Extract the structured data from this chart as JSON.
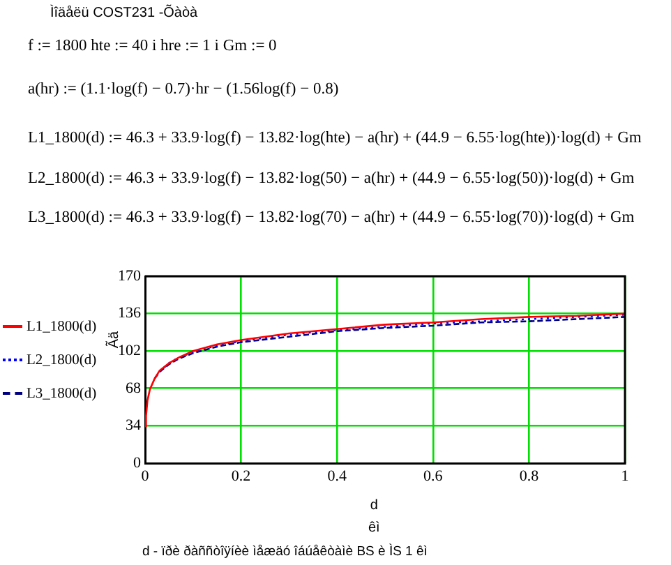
{
  "chart_data": {
    "type": "line",
    "title": "Ìîäåëü COST231 -Õàòà",
    "annotations": [
      "f := 1800    hte := 40   i        hre := 1   i    Gm := 0",
      "a(hr) := (1.1·log(f) − 0.7)·hr − (1.56log(f) − 0.8)",
      "L1_1800(d) := 46.3 + 33.9·log(f) − 13.82·log(hte) − a(hr) + (44.9 − 6.55·log(hte))·log(d) + Gm",
      "L2_1800(d) := 46.3 + 33.9·log(f) − 13.82·log(50) − a(hr) + (44.9 − 6.55·log(50))·log(d) + Gm",
      "L3_1800(d) := 46.3 + 33.9·log(f) − 13.82·log(70) − a(hr) + (44.9 − 6.55·log(70))·log(d) + Gm",
      "d - ïðè ðàññòîÿíèè ìåæäó îáúåêòàìè BS è ÌS 1 êì"
    ],
    "xlabel": "d\nêì",
    "ylabel": "Ãä",
    "x": [
      0.001,
      0.002,
      0.005,
      0.01,
      0.02,
      0.03,
      0.05,
      0.07,
      0.1,
      0.15,
      0.2,
      0.3,
      0.4,
      0.5,
      0.6,
      0.7,
      0.8,
      0.9,
      1
    ],
    "series": [
      {
        "name": "L1_1800(d)",
        "color": "#ff0000",
        "line_style": "solid",
        "values": [
          33,
          43,
          57,
          67,
          77,
          84,
          91,
          96,
          102,
          108,
          112,
          118,
          122,
          126,
          128,
          131,
          133,
          134,
          136
        ]
      },
      {
        "name": "L2_1800(d)",
        "color": "#0000ff",
        "line_style": "dotted",
        "values": [
          null,
          null,
          null,
          null,
          null,
          83,
          91,
          96,
          101,
          107,
          111,
          117,
          121,
          124,
          127,
          129,
          131,
          133,
          135
        ]
      },
      {
        "name": "L3_1800(d)",
        "color": "#000080",
        "line_style": "dashed",
        "values": [
          null,
          null,
          null,
          null,
          77,
          83,
          90,
          95,
          100,
          106,
          110,
          115,
          120,
          123,
          125,
          128,
          129,
          131,
          133
        ]
      }
    ],
    "xlim": [
      0,
      1
    ],
    "xticks": [
      0,
      0.2,
      0.4,
      0.6,
      0.8,
      1
    ],
    "ylim": [
      0,
      170
    ],
    "yticks": [
      0,
      34,
      68,
      102,
      136,
      170
    ],
    "grid": true,
    "legend": "left",
    "marker": "none"
  }
}
